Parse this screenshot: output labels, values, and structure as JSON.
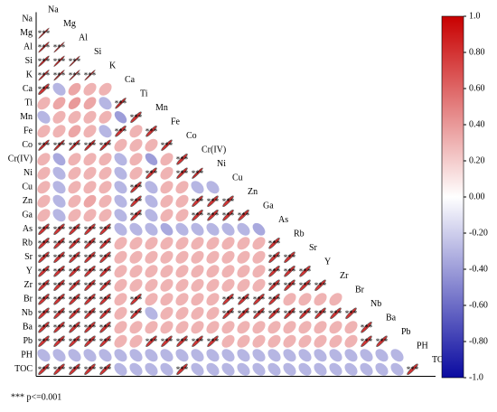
{
  "chart_data": {
    "type": "correlogram",
    "variables": [
      "Na",
      "Mg",
      "Al",
      "Si",
      "K",
      "Ca",
      "Ti",
      "Mn",
      "Fe",
      "Co",
      "Cr(IV)",
      "Ni",
      "Cu",
      "Zn",
      "Ga",
      "As",
      "Rb",
      "Sr",
      "Y",
      "Zr",
      "Br",
      "Nb",
      "Ba",
      "Pb",
      "PH",
      "TOC"
    ],
    "values": [
      [],
      [
        0.92
      ],
      [
        0.9,
        0.93
      ],
      [
        0.88,
        0.9,
        0.95
      ],
      [
        0.9,
        0.91,
        0.94,
        0.92
      ],
      [
        0.8,
        -0.3,
        0.35,
        0.3,
        0.3
      ],
      [
        0.3,
        0.35,
        0.4,
        0.35,
        -0.3,
        0.85
      ],
      [
        -0.3,
        0.3,
        0.3,
        0.3,
        0.3,
        -0.4,
        0.8
      ],
      [
        0.3,
        0.3,
        0.35,
        0.3,
        -0.3,
        0.8,
        0.3,
        0.8
      ],
      [
        0.85,
        0.86,
        0.85,
        0.84,
        0.83,
        0.3,
        0.3,
        0.3,
        0.82
      ],
      [
        0.3,
        -0.35,
        0.3,
        0.3,
        0.3,
        -0.3,
        0.3,
        -0.4,
        0.3,
        0.8
      ],
      [
        0.3,
        -0.3,
        0.3,
        0.3,
        0.3,
        -0.3,
        0.3,
        0.8,
        0.3,
        0.82,
        0.85
      ],
      [
        0.3,
        -0.3,
        0.3,
        0.3,
        0.3,
        -0.3,
        0.8,
        -0.3,
        0.3,
        0.3,
        -0.3,
        -0.3
      ],
      [
        0.3,
        -0.3,
        0.3,
        0.35,
        0.3,
        -0.3,
        0.8,
        -0.3,
        0.3,
        0.3,
        0.8,
        0.8,
        0.8
      ],
      [
        0.3,
        -0.3,
        0.3,
        0.3,
        0.3,
        -0.3,
        0.8,
        -0.3,
        0.3,
        0.3,
        0.8,
        0.8,
        0.8,
        0.8
      ],
      [
        0.8,
        0.8,
        0.8,
        0.8,
        0.8,
        -0.3,
        -0.3,
        -0.3,
        -0.35,
        -0.3,
        -0.3,
        -0.3,
        -0.3,
        -0.3,
        -0.35
      ],
      [
        0.8,
        0.8,
        0.8,
        0.8,
        0.8,
        0.3,
        0.3,
        0.3,
        0.3,
        0.3,
        0.3,
        0.3,
        0.3,
        0.3,
        0.3,
        0.8
      ],
      [
        0.8,
        0.8,
        0.8,
        0.8,
        0.8,
        0.3,
        0.3,
        0.3,
        0.3,
        0.3,
        0.3,
        0.3,
        0.3,
        0.3,
        0.3,
        0.8,
        0.8
      ],
      [
        0.8,
        0.8,
        0.8,
        0.8,
        0.8,
        0.3,
        0.3,
        0.3,
        0.3,
        0.3,
        0.3,
        0.3,
        0.3,
        0.3,
        0.3,
        0.8,
        0.8,
        0.8
      ],
      [
        0.8,
        0.8,
        0.8,
        0.8,
        0.8,
        0.3,
        0.3,
        0.3,
        0.3,
        0.3,
        0.3,
        0.3,
        0.3,
        0.3,
        0.3,
        0.8,
        0.8,
        0.8,
        0.8
      ],
      [
        0.8,
        0.8,
        0.8,
        0.8,
        0.8,
        0.3,
        0.8,
        0.3,
        0.3,
        0.3,
        0.3,
        0.3,
        0.8,
        0.8,
        0.8,
        0.8,
        0.3,
        0.3,
        0.3,
        0.3
      ],
      [
        0.8,
        0.8,
        0.8,
        0.8,
        0.8,
        0.3,
        0.8,
        -0.3,
        0.3,
        0.3,
        0.3,
        0.3,
        0.8,
        0.8,
        0.8,
        0.8,
        0.8,
        0.8,
        0.8,
        0.8,
        0.8
      ],
      [
        0.8,
        0.8,
        0.8,
        0.8,
        0.8,
        0.3,
        0.3,
        0.3,
        0.3,
        0.3,
        0.3,
        0.3,
        0.3,
        0.3,
        0.3,
        0.3,
        0.3,
        0.3,
        0.3,
        0.3,
        0.3,
        0.8
      ],
      [
        0.8,
        0.8,
        0.8,
        0.8,
        0.8,
        0.3,
        0.3,
        0.8,
        0.8,
        0.8,
        0.8,
        0.8,
        0.3,
        0.3,
        0.3,
        0.3,
        0.3,
        0.3,
        0.3,
        0.3,
        0.3,
        0.8,
        0.8
      ],
      [
        -0.3,
        -0.3,
        -0.3,
        -0.3,
        -0.3,
        -0.3,
        -0.3,
        -0.3,
        -0.3,
        -0.3,
        -0.3,
        -0.3,
        -0.3,
        -0.3,
        -0.3,
        -0.3,
        -0.3,
        -0.3,
        -0.3,
        -0.3,
        -0.3,
        -0.3,
        -0.3,
        -0.3
      ],
      [
        0.8,
        0.8,
        0.8,
        0.8,
        0.8,
        -0.3,
        -0.3,
        -0.3,
        -0.3,
        0.8,
        -0.3,
        -0.3,
        -0.3,
        -0.3,
        -0.3,
        -0.3,
        -0.3,
        -0.3,
        -0.3,
        -0.3,
        -0.3,
        -0.3,
        -0.3,
        -0.3,
        0.8
      ]
    ],
    "significant": [
      [],
      [
        1
      ],
      [
        1,
        1
      ],
      [
        1,
        1,
        1
      ],
      [
        1,
        1,
        1,
        1
      ],
      [
        1,
        0,
        0,
        0,
        0
      ],
      [
        0,
        0,
        0,
        0,
        0,
        1
      ],
      [
        0,
        0,
        0,
        0,
        0,
        0,
        1
      ],
      [
        0,
        0,
        0,
        0,
        0,
        1,
        0,
        1
      ],
      [
        1,
        1,
        1,
        1,
        1,
        0,
        0,
        0,
        1
      ],
      [
        0,
        0,
        0,
        0,
        0,
        0,
        0,
        0,
        0,
        1
      ],
      [
        0,
        0,
        0,
        0,
        0,
        0,
        0,
        1,
        0,
        1,
        1
      ],
      [
        0,
        0,
        0,
        0,
        0,
        0,
        1,
        0,
        0,
        0,
        0,
        0
      ],
      [
        0,
        0,
        0,
        0,
        0,
        0,
        1,
        0,
        0,
        0,
        1,
        1,
        1
      ],
      [
        0,
        0,
        0,
        0,
        0,
        0,
        1,
        0,
        0,
        0,
        1,
        1,
        1,
        1
      ],
      [
        1,
        1,
        1,
        1,
        1,
        0,
        0,
        0,
        0,
        0,
        0,
        0,
        0,
        0,
        0
      ],
      [
        1,
        1,
        1,
        1,
        1,
        0,
        0,
        0,
        0,
        0,
        0,
        0,
        0,
        0,
        0,
        1
      ],
      [
        1,
        1,
        1,
        1,
        1,
        0,
        0,
        0,
        0,
        0,
        0,
        0,
        0,
        0,
        0,
        1,
        1
      ],
      [
        1,
        1,
        1,
        1,
        1,
        0,
        0,
        0,
        0,
        0,
        0,
        0,
        0,
        0,
        0,
        1,
        1,
        1
      ],
      [
        1,
        1,
        1,
        1,
        1,
        0,
        0,
        0,
        0,
        0,
        0,
        0,
        0,
        0,
        0,
        1,
        1,
        1,
        1
      ],
      [
        1,
        1,
        1,
        1,
        1,
        0,
        1,
        0,
        0,
        0,
        0,
        0,
        1,
        1,
        1,
        1,
        0,
        0,
        0,
        0
      ],
      [
        1,
        1,
        1,
        1,
        1,
        0,
        1,
        0,
        0,
        0,
        0,
        0,
        1,
        1,
        1,
        1,
        1,
        1,
        1,
        1,
        1
      ],
      [
        1,
        1,
        1,
        1,
        1,
        0,
        0,
        0,
        0,
        0,
        0,
        0,
        0,
        0,
        0,
        0,
        0,
        0,
        0,
        0,
        0,
        1
      ],
      [
        1,
        1,
        1,
        1,
        1,
        0,
        0,
        1,
        1,
        1,
        1,
        1,
        0,
        0,
        0,
        0,
        0,
        0,
        0,
        0,
        0,
        1,
        1
      ],
      [
        0,
        0,
        0,
        0,
        0,
        0,
        0,
        0,
        0,
        0,
        0,
        0,
        0,
        0,
        0,
        0,
        0,
        0,
        0,
        0,
        0,
        0,
        0,
        0
      ],
      [
        1,
        1,
        1,
        1,
        1,
        0,
        0,
        0,
        0,
        1,
        0,
        0,
        0,
        0,
        0,
        0,
        0,
        0,
        0,
        0,
        0,
        0,
        0,
        0,
        1
      ]
    ],
    "significance_label": "***",
    "footnote": "*** p<=0.001",
    "clim": [
      -1,
      1
    ],
    "colors": {
      "low": "#0a0aa0",
      "mid": "#ffffff",
      "high": "#c80000"
    },
    "cticks": [
      {
        "value": 1,
        "label": "1.0"
      },
      {
        "value": 0.8,
        "label": "0.80"
      },
      {
        "value": 0.6,
        "label": "0.60"
      },
      {
        "value": 0.4,
        "label": "0.40"
      },
      {
        "value": 0.2,
        "label": "0.20"
      },
      {
        "value": 0,
        "label": "0.00"
      },
      {
        "value": -0.2,
        "label": "-0.20"
      },
      {
        "value": -0.4,
        "label": "-0.40"
      },
      {
        "value": -0.6,
        "label": "-0.60"
      },
      {
        "value": -0.8,
        "label": "-0.80"
      },
      {
        "value": -1,
        "label": "-1.0"
      }
    ]
  }
}
